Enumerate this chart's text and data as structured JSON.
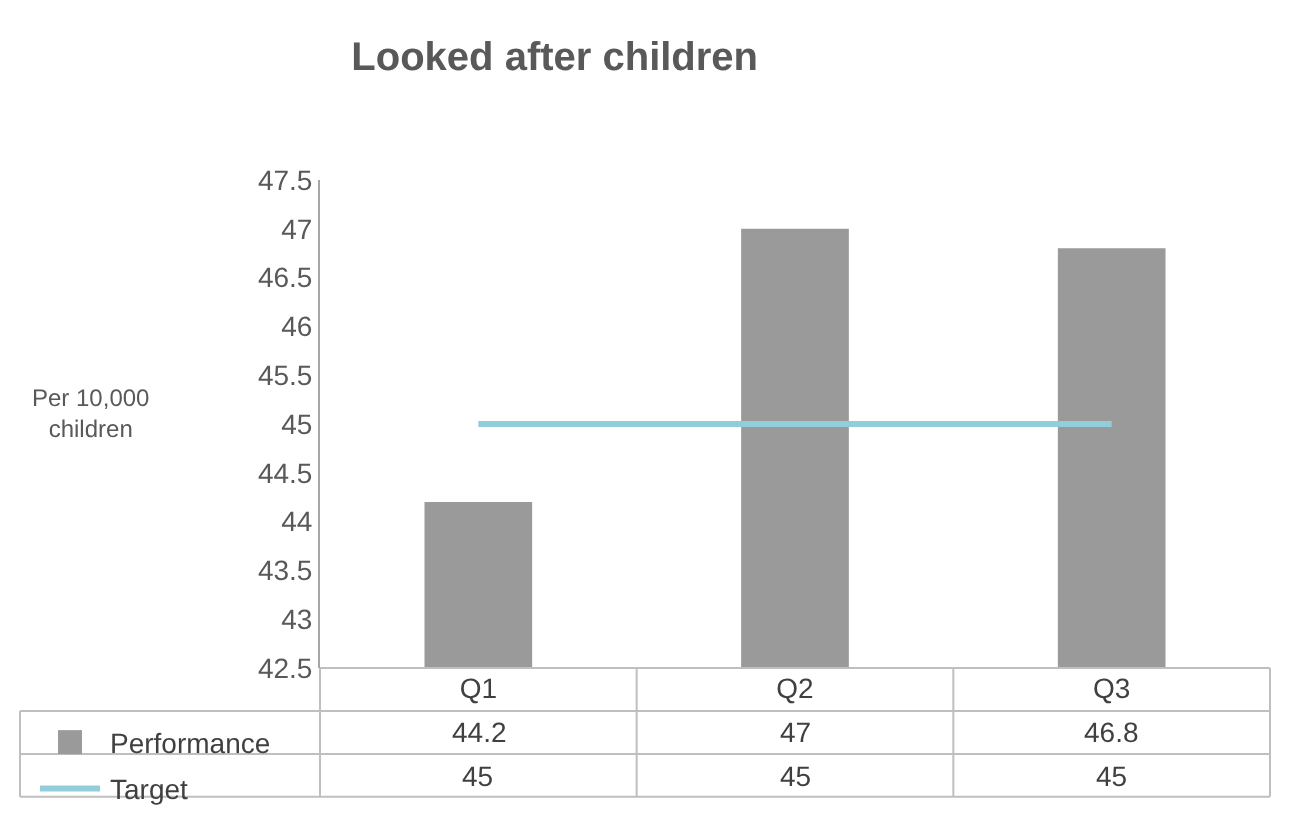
{
  "chart_data": {
    "type": "bar",
    "title": "Looked after children",
    "ylabel": "Per 10,000\nchildren",
    "categories": [
      "Q1",
      "Q2",
      "Q3"
    ],
    "series": [
      {
        "name": "Performance",
        "color": "#9a9a9a",
        "values": [
          44.2,
          47,
          46.8
        ]
      },
      {
        "name": "Target",
        "type": "line",
        "color": "#92cddc",
        "values": [
          45,
          45,
          45
        ]
      }
    ],
    "ylim": [
      42.5,
      47.5
    ],
    "yticks": [
      42.5,
      43,
      43.5,
      44,
      44.5,
      45,
      45.5,
      46,
      46.5,
      47,
      47.5
    ],
    "grid": false,
    "legend": "bottom",
    "data_labels": true,
    "marker": "none"
  }
}
